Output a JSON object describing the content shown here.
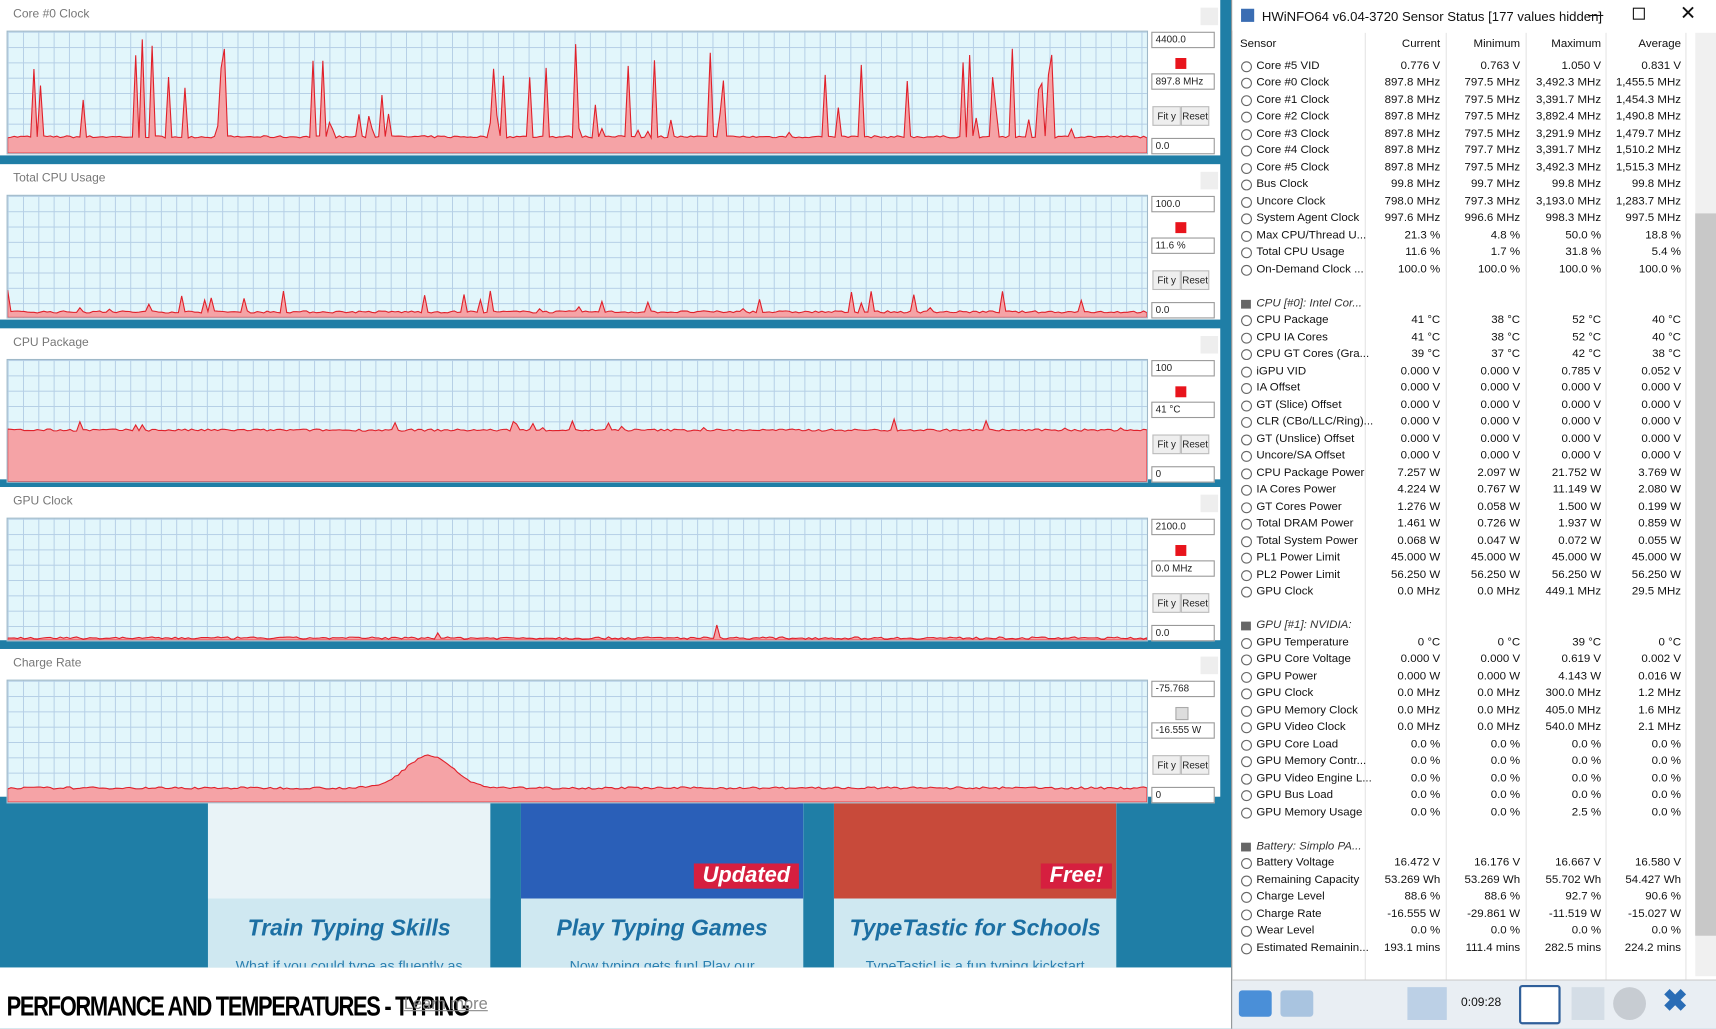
{
  "website": {
    "cards": [
      {
        "title": "Train Typing Skills",
        "text": "What if you could type as fluently as"
      },
      {
        "title": "Play Typing Games",
        "text": "Now typing gets fun! Play our",
        "badge": "Updated"
      },
      {
        "title": "TypeTastic for Schools",
        "text": "TypeTastic! is a fun typing kickstart",
        "badge": "Free!"
      }
    ],
    "footer_title": "PERFORMANCE AND TEMPERATURES - TYPING",
    "learn_more": "Learn more"
  },
  "graph_window": {
    "panels": [
      {
        "title": "Core #0 Clock",
        "max": "4400.0",
        "current": "897.8 MHz",
        "min": "0.0",
        "fit": "Fit y",
        "reset": "Reset"
      },
      {
        "title": "Total CPU Usage",
        "max": "100.0",
        "current": "11.6 %",
        "min": "0.0",
        "fit": "Fit y",
        "reset": "Reset"
      },
      {
        "title": "CPU Package",
        "max": "100",
        "current": "41 °C",
        "min": "0",
        "fit": "Fit y",
        "reset": "Reset"
      },
      {
        "title": "GPU Clock",
        "max": "2100.0",
        "current": "0.0 MHz",
        "min": "0.0",
        "fit": "Fit y",
        "reset": "Reset"
      },
      {
        "title": "Charge Rate",
        "max": "-75.768",
        "current": "-16.555 W",
        "min": "0",
        "fit": "Fit y",
        "reset": "Reset"
      }
    ]
  },
  "hwinfo": {
    "title": "HWiNFO64 v6.04-3720 Sensor Status [177 values hidden]",
    "columns": [
      "Sensor",
      "Current",
      "Minimum",
      "Maximum",
      "Average"
    ],
    "timer": "0:09:28",
    "groups": [
      {
        "rows": [
          [
            "Core #5 VID",
            "0.776 V",
            "0.763 V",
            "1.050 V",
            "0.831 V"
          ],
          [
            "Core #0 Clock",
            "897.8 MHz",
            "797.5 MHz",
            "3,492.3 MHz",
            "1,455.5 MHz"
          ],
          [
            "Core #1 Clock",
            "897.8 MHz",
            "797.5 MHz",
            "3,391.7 MHz",
            "1,454.3 MHz"
          ],
          [
            "Core #2 Clock",
            "897.8 MHz",
            "797.5 MHz",
            "3,892.4 MHz",
            "1,490.8 MHz"
          ],
          [
            "Core #3 Clock",
            "897.8 MHz",
            "797.5 MHz",
            "3,291.9 MHz",
            "1,479.7 MHz"
          ],
          [
            "Core #4 Clock",
            "897.8 MHz",
            "797.7 MHz",
            "3,391.7 MHz",
            "1,510.2 MHz"
          ],
          [
            "Core #5 Clock",
            "897.8 MHz",
            "797.5 MHz",
            "3,492.3 MHz",
            "1,515.3 MHz"
          ],
          [
            "Bus Clock",
            "99.8 MHz",
            "99.7 MHz",
            "99.8 MHz",
            "99.8 MHz"
          ],
          [
            "Uncore Clock",
            "798.0 MHz",
            "797.3 MHz",
            "3,193.0 MHz",
            "1,283.7 MHz"
          ],
          [
            "System Agent Clock",
            "997.6 MHz",
            "996.6 MHz",
            "998.3 MHz",
            "997.5 MHz"
          ],
          [
            "Max CPU/Thread U...",
            "21.3 %",
            "4.8 %",
            "50.0 %",
            "18.8 %"
          ],
          [
            "Total CPU Usage",
            "11.6 %",
            "1.7 %",
            "31.8 %",
            "5.4 %"
          ],
          [
            "On-Demand Clock ...",
            "100.0 %",
            "100.0 %",
            "100.0 %",
            "100.0 %"
          ]
        ]
      },
      {
        "header": "CPU [#0]: Intel Cor...",
        "rows": [
          [
            "CPU Package",
            "41 °C",
            "38 °C",
            "52 °C",
            "40 °C"
          ],
          [
            "CPU IA Cores",
            "41 °C",
            "38 °C",
            "52 °C",
            "40 °C"
          ],
          [
            "CPU GT Cores (Gra...",
            "39 °C",
            "37 °C",
            "42 °C",
            "38 °C"
          ],
          [
            "iGPU VID",
            "0.000 V",
            "0.000 V",
            "0.785 V",
            "0.052 V"
          ],
          [
            "IA Offset",
            "0.000 V",
            "0.000 V",
            "0.000 V",
            "0.000 V"
          ],
          [
            "GT (Slice) Offset",
            "0.000 V",
            "0.000 V",
            "0.000 V",
            "0.000 V"
          ],
          [
            "CLR (CBo/LLC/Ring)...",
            "0.000 V",
            "0.000 V",
            "0.000 V",
            "0.000 V"
          ],
          [
            "GT (Unslice) Offset",
            "0.000 V",
            "0.000 V",
            "0.000 V",
            "0.000 V"
          ],
          [
            "Uncore/SA Offset",
            "0.000 V",
            "0.000 V",
            "0.000 V",
            "0.000 V"
          ],
          [
            "CPU Package Power",
            "7.257 W",
            "2.097 W",
            "21.752 W",
            "3.769 W"
          ],
          [
            "IA Cores Power",
            "4.224 W",
            "0.767 W",
            "11.149 W",
            "2.080 W"
          ],
          [
            "GT Cores Power",
            "1.276 W",
            "0.058 W",
            "1.500 W",
            "0.199 W"
          ],
          [
            "Total DRAM Power",
            "1.461 W",
            "0.726 W",
            "1.937 W",
            "0.859 W"
          ],
          [
            "Total System Power",
            "0.068 W",
            "0.047 W",
            "0.072 W",
            "0.055 W"
          ],
          [
            "PL1 Power Limit",
            "45.000 W",
            "45.000 W",
            "45.000 W",
            "45.000 W"
          ],
          [
            "PL2 Power Limit",
            "56.250 W",
            "56.250 W",
            "56.250 W",
            "56.250 W"
          ],
          [
            "GPU Clock",
            "0.0 MHz",
            "0.0 MHz",
            "449.1 MHz",
            "29.5 MHz"
          ]
        ]
      },
      {
        "header": "GPU [#1]: NVIDIA:",
        "rows": [
          [
            "GPU Temperature",
            "0 °C",
            "0 °C",
            "39 °C",
            "0 °C"
          ],
          [
            "GPU Core Voltage",
            "0.000 V",
            "0.000 V",
            "0.619 V",
            "0.002 V"
          ],
          [
            "GPU Power",
            "0.000 W",
            "0.000 W",
            "4.143 W",
            "0.016 W"
          ],
          [
            "GPU Clock",
            "0.0 MHz",
            "0.0 MHz",
            "300.0 MHz",
            "1.2 MHz"
          ],
          [
            "GPU Memory Clock",
            "0.0 MHz",
            "0.0 MHz",
            "405.0 MHz",
            "1.6 MHz"
          ],
          [
            "GPU Video Clock",
            "0.0 MHz",
            "0.0 MHz",
            "540.0 MHz",
            "2.1 MHz"
          ],
          [
            "GPU Core Load",
            "0.0 %",
            "0.0 %",
            "0.0 %",
            "0.0 %"
          ],
          [
            "GPU Memory Contr...",
            "0.0 %",
            "0.0 %",
            "0.0 %",
            "0.0 %"
          ],
          [
            "GPU Video Engine L...",
            "0.0 %",
            "0.0 %",
            "0.0 %",
            "0.0 %"
          ],
          [
            "GPU Bus Load",
            "0.0 %",
            "0.0 %",
            "0.0 %",
            "0.0 %"
          ],
          [
            "GPU Memory Usage",
            "0.0 %",
            "0.0 %",
            "2.5 %",
            "0.0 %"
          ]
        ]
      },
      {
        "header": "Battery: Simplo PA...",
        "rows": [
          [
            "Battery Voltage",
            "16.472 V",
            "16.176 V",
            "16.667 V",
            "16.580 V"
          ],
          [
            "Remaining Capacity",
            "53.269 Wh",
            "53.269 Wh",
            "55.702 Wh",
            "54.427 Wh"
          ],
          [
            "Charge Level",
            "88.6 %",
            "88.6 %",
            "92.7 %",
            "90.6 %"
          ],
          [
            "Charge Rate",
            "-16.555 W",
            "-29.861 W",
            "-11.519 W",
            "-15.027 W"
          ],
          [
            "Wear Level",
            "0.0 %",
            "0.0 %",
            "0.0 %",
            "0.0 %"
          ],
          [
            "Estimated Remainin...",
            "193.1 mins",
            "111.4 mins",
            "282.5 mins",
            "224.2 mins"
          ]
        ]
      }
    ]
  }
}
